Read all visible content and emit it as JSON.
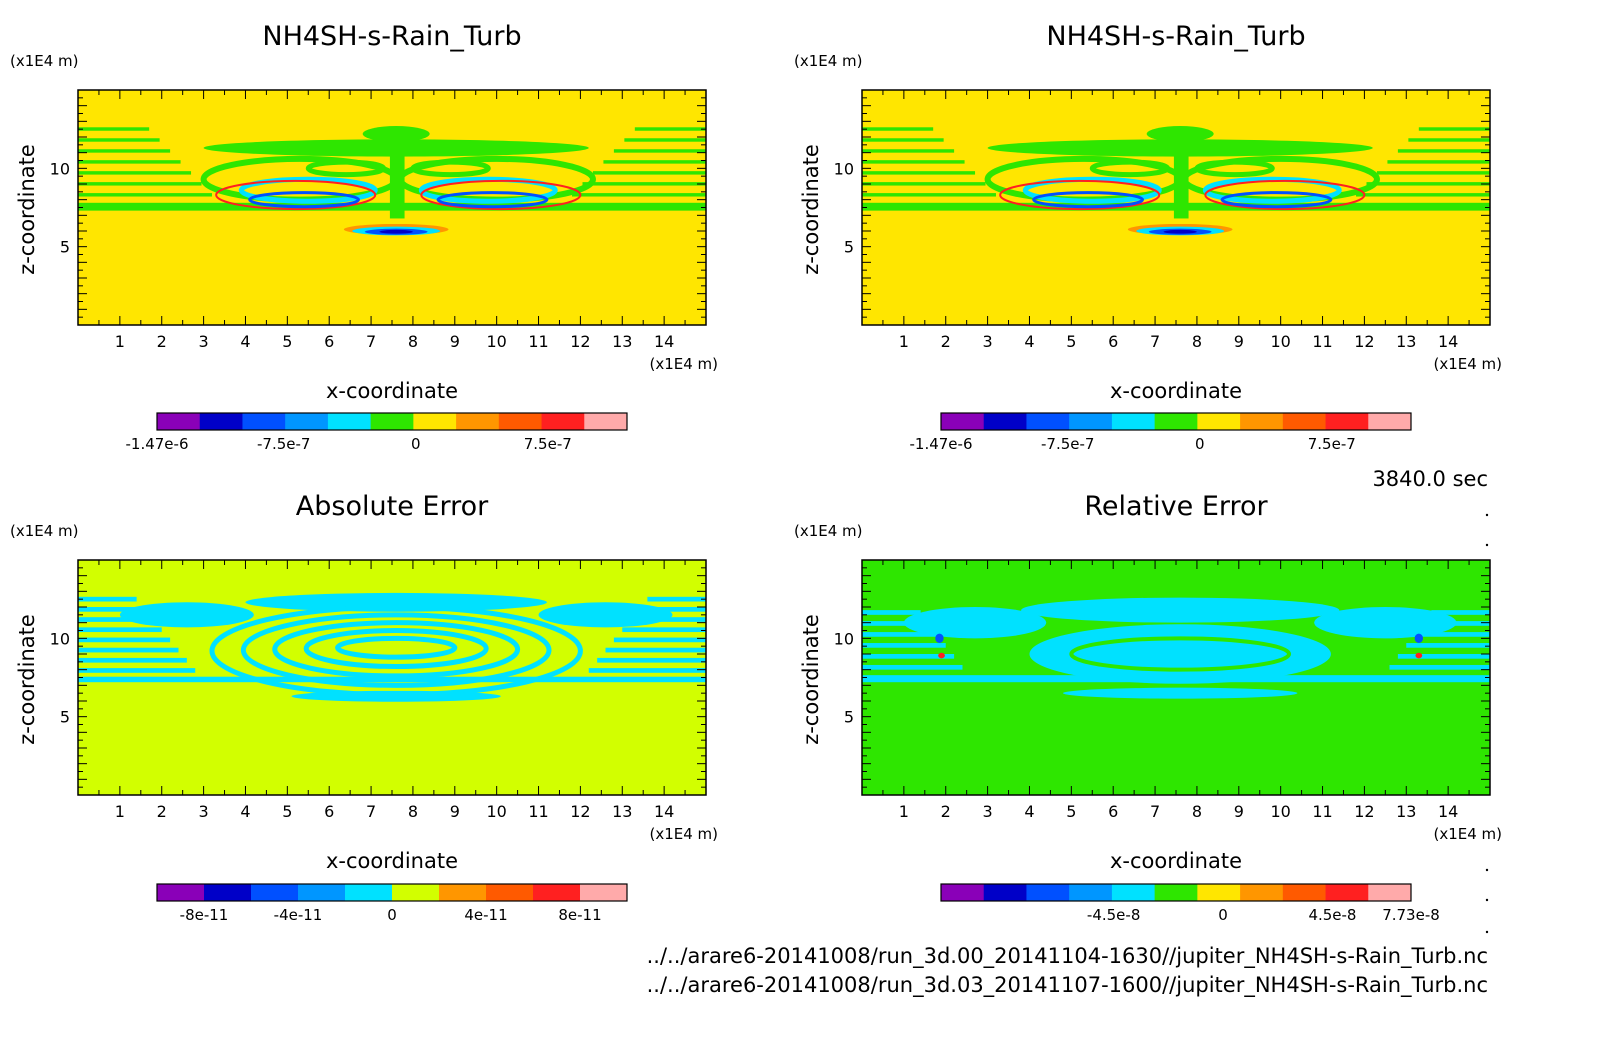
{
  "time_label": "3840.0 sec",
  "footer_lines": [
    "../../arare6-20141008/run_3d.00_20141104-1630//jupiter_NH4SH-s-Rain_Turb.nc",
    "../../arare6-20141008/run_3d.03_20141107-1600//jupiter_NH4SH-s-Rain_Turb.nc"
  ],
  "chart_data": [
    {
      "type": "heatmap",
      "title": "NH4SH-s-Rain_Turb",
      "xlabel": "x-coordinate",
      "ylabel": "z-coordinate",
      "x_unit": "(x1E4 m)",
      "y_unit": "(x1E4 m)",
      "xlim": [
        0,
        15
      ],
      "ylim": [
        0,
        15
      ],
      "xticks": [
        "1",
        "2",
        "3",
        "4",
        "5",
        "6",
        "7",
        "8",
        "9",
        "10",
        "11",
        "12",
        "13",
        "14"
      ],
      "yticks": [
        "5",
        "10"
      ],
      "background_color": "#ffe600",
      "colorbar": {
        "colors": [
          "#8a00b8",
          "#0000c8",
          "#0050ff",
          "#0096ff",
          "#00e1ff",
          "#2ee600",
          "#ffe600",
          "#ff9600",
          "#ff5a00",
          "#ff2020",
          "#ffaaaa"
        ],
        "tick_labels": [
          "-1.47e-6",
          "-7.5e-7",
          "0",
          "7.5e-7"
        ],
        "tick_values": [
          -1.47e-06,
          -7.5e-07,
          0,
          7.5e-07
        ],
        "range": [
          -1.47e-06,
          1.2e-06
        ]
      }
    },
    {
      "type": "heatmap",
      "title": "NH4SH-s-Rain_Turb",
      "xlabel": "x-coordinate",
      "ylabel": "z-coordinate",
      "x_unit": "(x1E4 m)",
      "y_unit": "(x1E4 m)",
      "xlim": [
        0,
        15
      ],
      "ylim": [
        0,
        15
      ],
      "xticks": [
        "1",
        "2",
        "3",
        "4",
        "5",
        "6",
        "7",
        "8",
        "9",
        "10",
        "11",
        "12",
        "13",
        "14"
      ],
      "yticks": [
        "5",
        "10"
      ],
      "background_color": "#ffe600",
      "colorbar": {
        "colors": [
          "#8a00b8",
          "#0000c8",
          "#0050ff",
          "#0096ff",
          "#00e1ff",
          "#2ee600",
          "#ffe600",
          "#ff9600",
          "#ff5a00",
          "#ff2020",
          "#ffaaaa"
        ],
        "tick_labels": [
          "-1.47e-6",
          "-7.5e-7",
          "0",
          "7.5e-7"
        ],
        "tick_values": [
          -1.47e-06,
          -7.5e-07,
          0,
          7.5e-07
        ],
        "range": [
          -1.47e-06,
          1.2e-06
        ]
      }
    },
    {
      "type": "heatmap",
      "title": "Absolute Error",
      "xlabel": "x-coordinate",
      "ylabel": "z-coordinate",
      "x_unit": "(x1E4 m)",
      "y_unit": "(x1E4 m)",
      "xlim": [
        0,
        15
      ],
      "ylim": [
        0,
        15
      ],
      "xticks": [
        "1",
        "2",
        "3",
        "4",
        "5",
        "6",
        "7",
        "8",
        "9",
        "10",
        "11",
        "12",
        "13",
        "14"
      ],
      "yticks": [
        "5",
        "10"
      ],
      "background_color": "#d2ff00",
      "colorbar": {
        "colors": [
          "#8a00b8",
          "#0000c8",
          "#0050ff",
          "#0096ff",
          "#00e1ff",
          "#d2ff00",
          "#ff9600",
          "#ff5a00",
          "#ff2020",
          "#ffaaaa"
        ],
        "tick_labels": [
          "-8e-11",
          "-4e-11",
          "0",
          "4e-11",
          "8e-11"
        ],
        "tick_values": [
          -8e-11,
          -4e-11,
          0,
          4e-11,
          8e-11
        ],
        "range": [
          -1e-10,
          1e-10
        ]
      }
    },
    {
      "type": "heatmap",
      "title": "Relative Error",
      "xlabel": "x-coordinate",
      "ylabel": "z-coordinate",
      "x_unit": "(x1E4 m)",
      "y_unit": "(x1E4 m)",
      "xlim": [
        0,
        15
      ],
      "ylim": [
        0,
        15
      ],
      "xticks": [
        "1",
        "2",
        "3",
        "4",
        "5",
        "6",
        "7",
        "8",
        "9",
        "10",
        "11",
        "12",
        "13",
        "14"
      ],
      "yticks": [
        "5",
        "10"
      ],
      "background_color": "#2ee600",
      "colorbar": {
        "colors": [
          "#8a00b8",
          "#0000c8",
          "#0050ff",
          "#0096ff",
          "#00e1ff",
          "#2ee600",
          "#ffe600",
          "#ff9600",
          "#ff5a00",
          "#ff2020",
          "#ffaaaa"
        ],
        "tick_labels": [
          "-4.5e-8",
          "0",
          "4.5e-8",
          "7.73e-8"
        ],
        "tick_values": [
          -4.5e-08,
          0,
          4.5e-08,
          7.73e-08
        ],
        "range": [
          -1.16e-07,
          7.73e-08
        ]
      }
    }
  ]
}
